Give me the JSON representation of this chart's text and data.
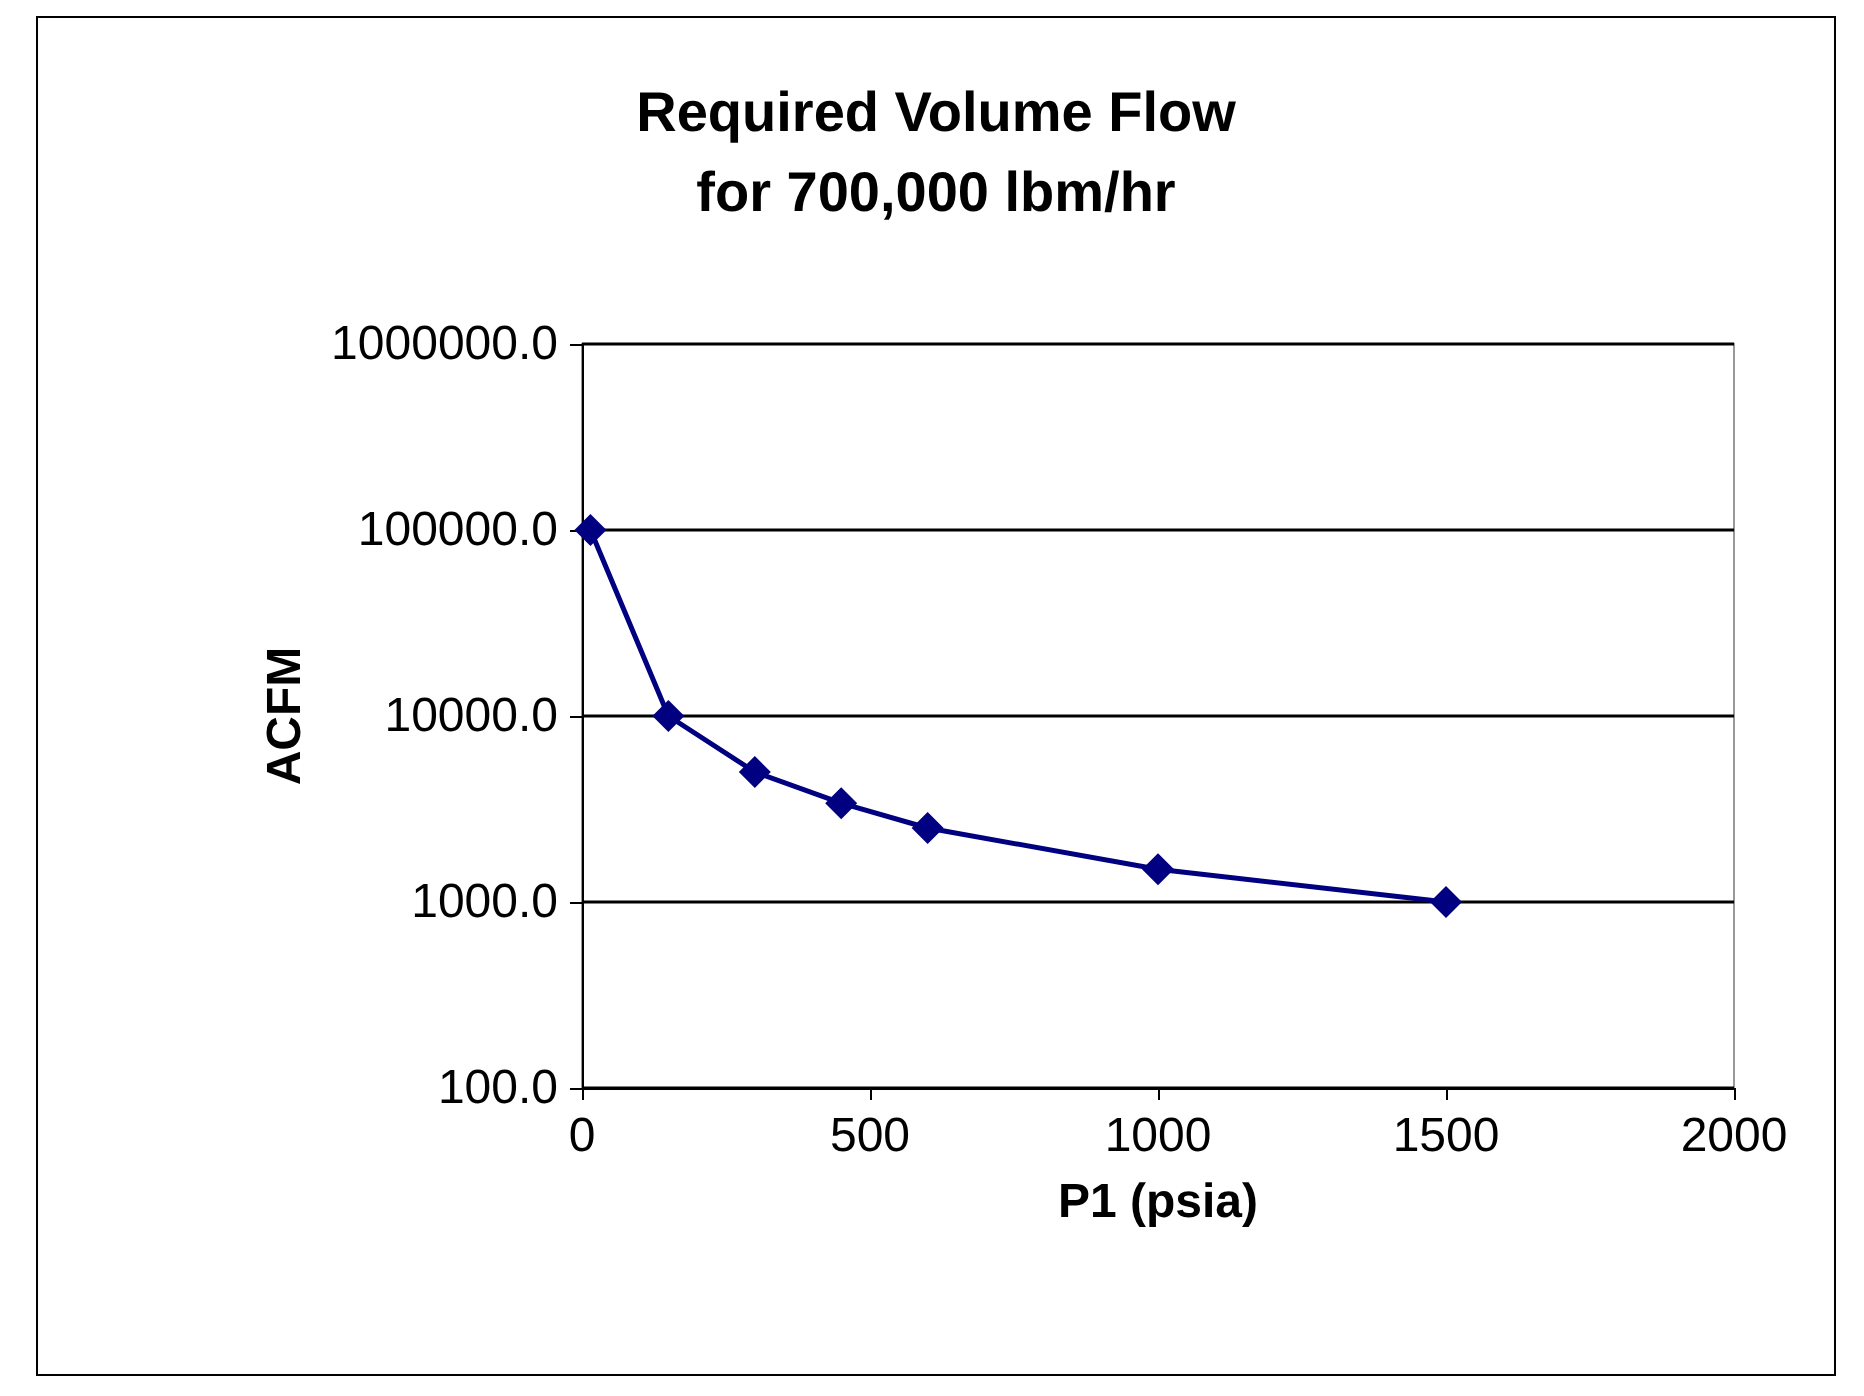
{
  "chart_data": {
    "type": "line",
    "title": "Required Volume Flow\nfor 700,000 lbm/hr",
    "xlabel": "P1 (psia)",
    "ylabel": "ACFM",
    "x": [
      14.7,
      150,
      300,
      450,
      600,
      1000,
      1500
    ],
    "series": [
      {
        "color": "#000080",
        "values": [
          100000,
          10000,
          5000,
          3400,
          2500,
          1500,
          1000
        ]
      }
    ],
    "xlim": [
      0,
      2000
    ],
    "xticks": [
      0,
      500,
      1000,
      1500,
      2000
    ],
    "ylim": [
      100,
      1000000
    ],
    "yticks": [
      {
        "value": 100,
        "label": "100.0"
      },
      {
        "value": 1000,
        "label": "1000.0"
      },
      {
        "value": 10000,
        "label": "10000.0"
      },
      {
        "value": 100000,
        "label": "100000.0"
      },
      {
        "value": 1000000,
        "label": "1000000.0"
      }
    ],
    "log": "y",
    "grid": "y",
    "marker": "diamond",
    "line_style": "solid"
  }
}
